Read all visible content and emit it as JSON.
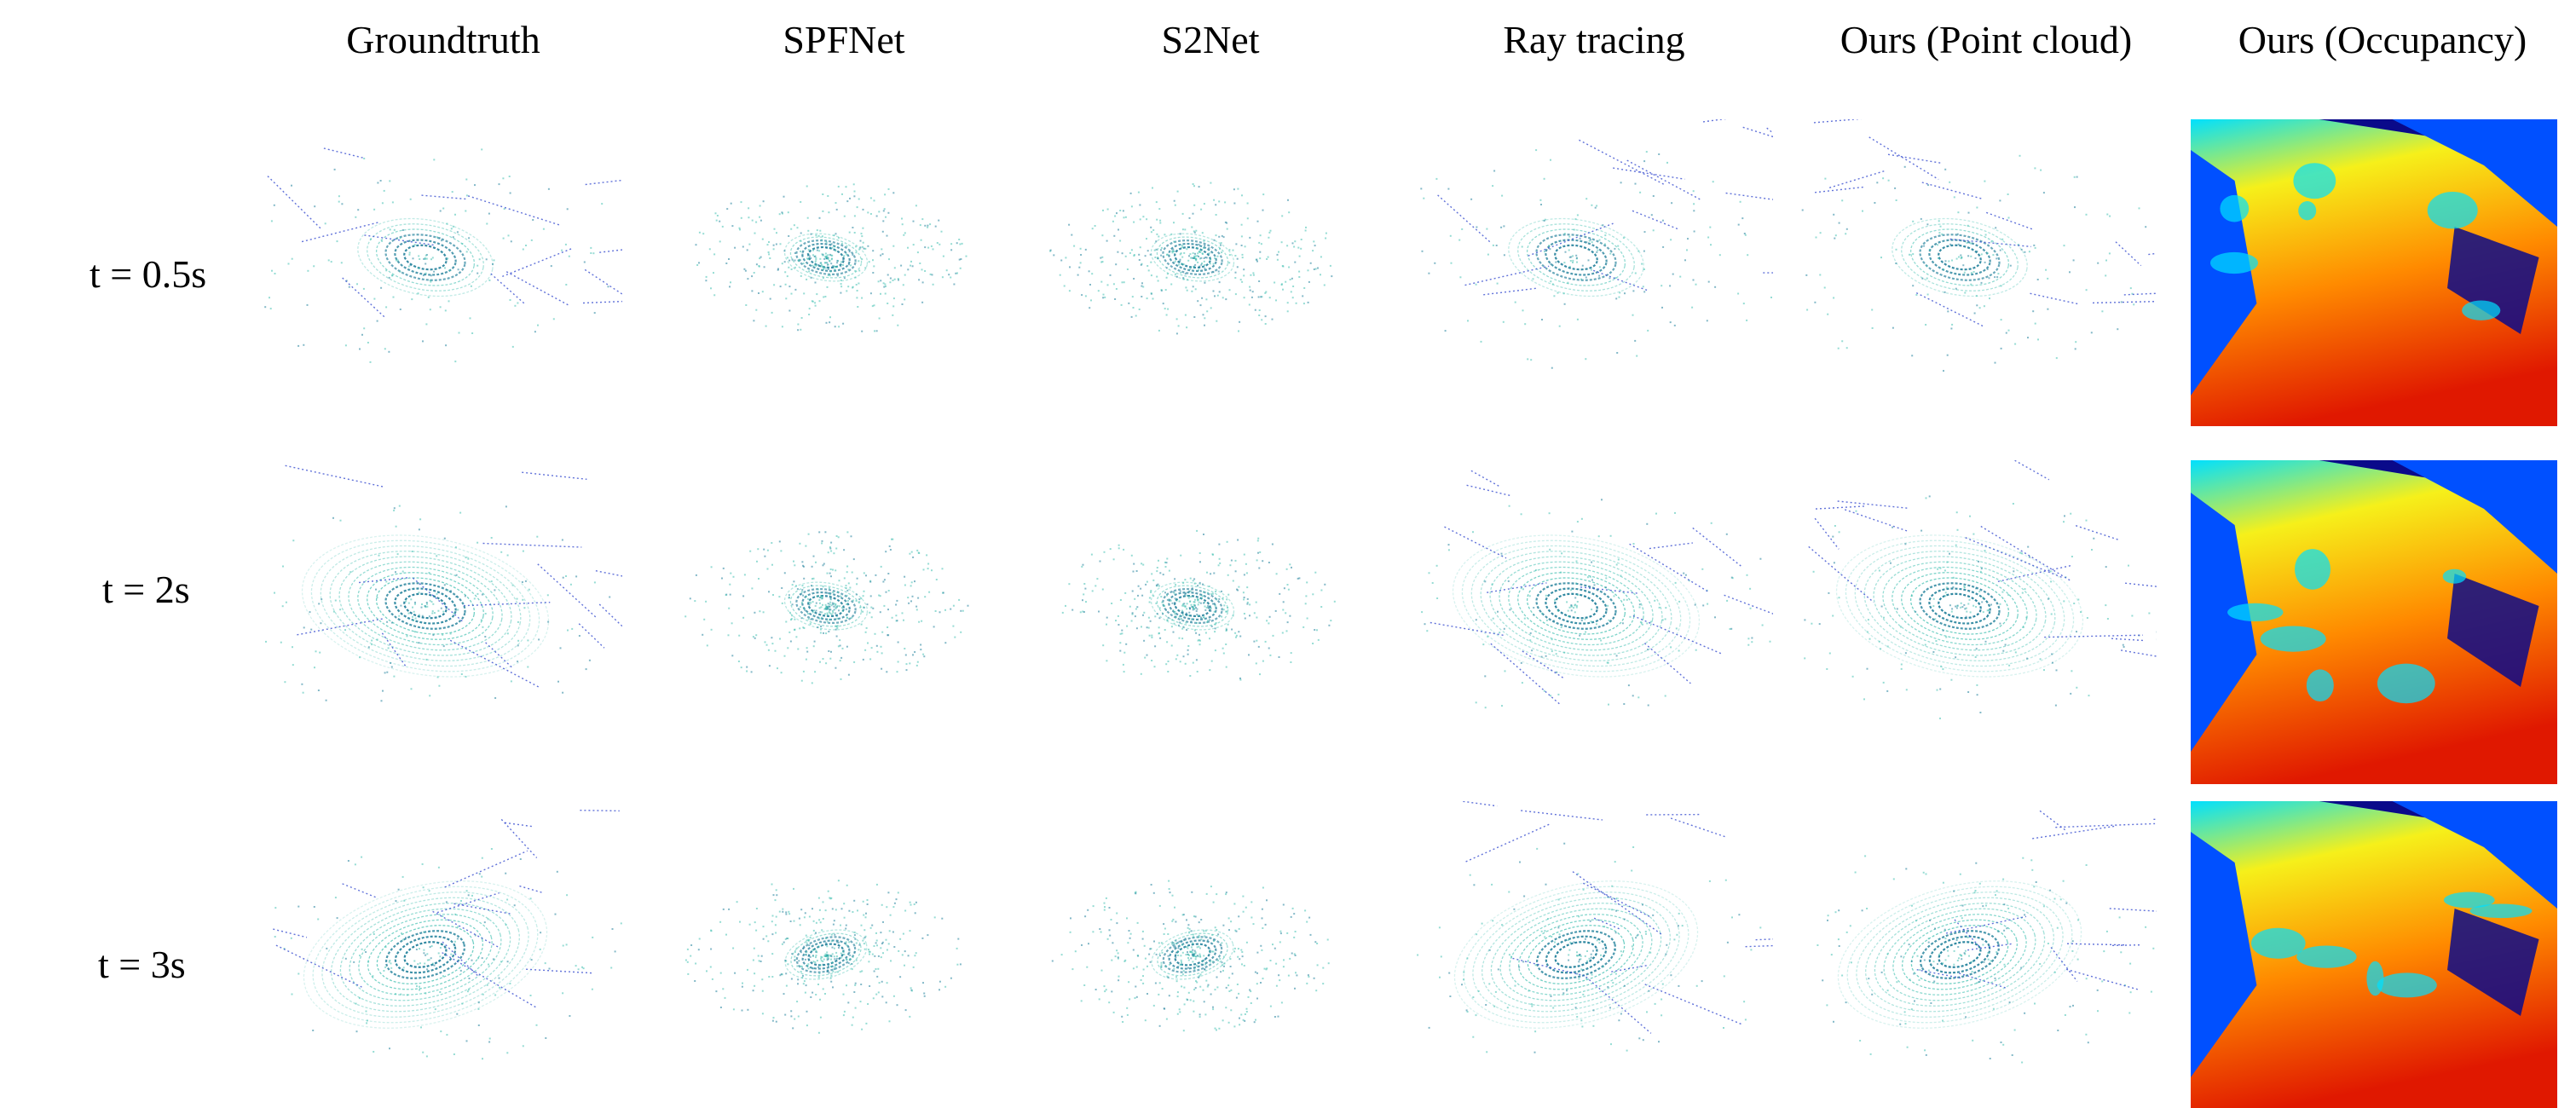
{
  "columns": [
    {
      "label": "Groundtruth"
    },
    {
      "label": "SPFNet"
    },
    {
      "label": "S2Net"
    },
    {
      "label": "Ray tracing"
    },
    {
      "label": "Ours (Point cloud)"
    },
    {
      "label": "Ours (Occupancy)"
    }
  ],
  "rows": [
    {
      "label": "t = 0.5s"
    },
    {
      "label": "t = 2s"
    },
    {
      "label": "t = 3s"
    }
  ],
  "colors": {
    "point_teal": "#3fbfb0",
    "point_dark_teal": "#1f7f9a",
    "point_blue": "#3a4fd0",
    "occ_dark_blue": "#0a0a8a",
    "occ_blue": "#0050ff",
    "occ_cyan": "#00e0ff",
    "occ_yellow": "#f6f01a",
    "occ_orange": "#ff8a00",
    "occ_red": "#e01800"
  }
}
